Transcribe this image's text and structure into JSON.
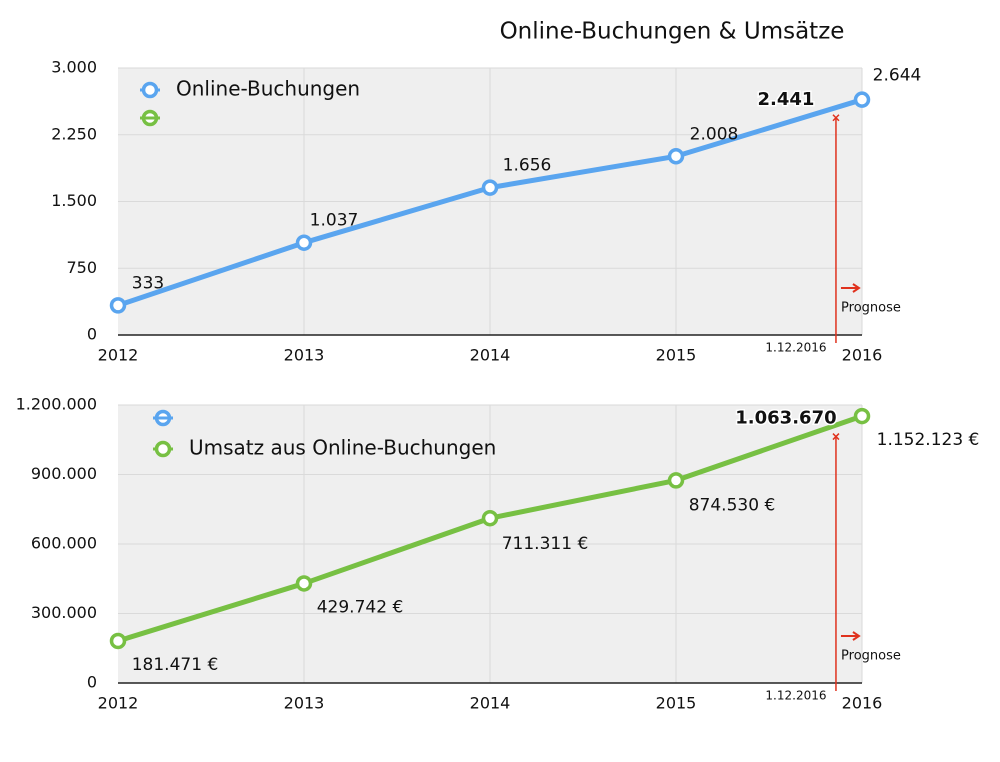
{
  "title": "Online-Buchungen & Umsätze",
  "chart_data": [
    {
      "type": "line",
      "x": [
        2012,
        2013,
        2014,
        2015,
        2016
      ],
      "series": [
        {
          "name": "Online-Buchungen",
          "color": "#5aa5ef",
          "values": [
            333,
            1037,
            1656,
            2008,
            2644
          ],
          "value_labels": [
            "333",
            "1.037",
            "1.656",
            "2.008",
            "2.644"
          ]
        }
      ],
      "xlim": [
        2012,
        2016
      ],
      "xticks": [
        2012,
        2013,
        2014,
        2015,
        2016
      ],
      "ylim": [
        0,
        3000
      ],
      "yticks": [
        0,
        {
          "value": 750,
          "label": "750"
        },
        {
          "value": 1500,
          "label": "1.500"
        },
        {
          "value": 2250,
          "label": "2.250"
        },
        {
          "value": 3000,
          "label": "3.000"
        }
      ],
      "grid": true,
      "annotation": {
        "x": 2015.86,
        "value": 2441,
        "label": "2.441",
        "date": "1.12.2016",
        "text": "Prognose",
        "color": "#e0321e"
      }
    },
    {
      "type": "line",
      "x": [
        2012,
        2013,
        2014,
        2015,
        2016
      ],
      "series": [
        {
          "name": "Umsatz aus Online-Buchungen",
          "color": "#77c043",
          "values": [
            181471,
            429742,
            711311,
            874530,
            1152123
          ],
          "value_labels": [
            "181.471 €",
            "429.742 €",
            "711.311 €",
            "874.530 €",
            "1.152.123 €"
          ]
        }
      ],
      "xlim": [
        2012,
        2016
      ],
      "xticks": [
        2012,
        2013,
        2014,
        2015,
        2016
      ],
      "ylim": [
        0,
        1200000
      ],
      "yticks": [
        0,
        {
          "value": 300000,
          "label": "300.000"
        },
        {
          "value": 600000,
          "label": "600.000"
        },
        {
          "value": 900000,
          "label": "900.000"
        },
        {
          "value": 1200000,
          "label": "1.200.000"
        }
      ],
      "grid": true,
      "annotation": {
        "x": 2015.86,
        "value": 1063670,
        "label": "1.063.670",
        "date": "1.12.2016",
        "text": "Prognose",
        "color": "#e0321e"
      }
    }
  ]
}
